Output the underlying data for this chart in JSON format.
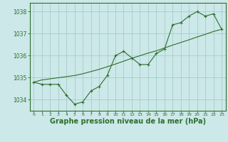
{
  "x": [
    0,
    1,
    2,
    3,
    4,
    5,
    6,
    7,
    8,
    9,
    10,
    11,
    12,
    13,
    14,
    15,
    16,
    17,
    18,
    19,
    20,
    21,
    22,
    23
  ],
  "line1": [
    1034.8,
    1034.7,
    1034.7,
    1034.7,
    1034.2,
    1033.8,
    1033.9,
    1034.4,
    1034.6,
    1035.1,
    1036.0,
    1036.2,
    1035.9,
    1035.6,
    1035.6,
    1036.1,
    1036.3,
    1037.4,
    1037.5,
    1037.8,
    1038.0,
    1037.8,
    1037.9,
    1037.2
  ],
  "smooth_line": [
    1034.8,
    1034.9,
    1034.95,
    1035.0,
    1035.05,
    1035.1,
    1035.18,
    1035.28,
    1035.38,
    1035.5,
    1035.62,
    1035.75,
    1035.88,
    1036.0,
    1036.12,
    1036.22,
    1036.35,
    1036.48,
    1036.6,
    1036.72,
    1036.85,
    1036.97,
    1037.1,
    1037.2
  ],
  "line_color": "#2d6e2d",
  "background_color": "#cce8e8",
  "grid_color": "#a0c8c8",
  "xlabel": "Graphe pression niveau de la mer (hPa)",
  "xlabel_fontsize": 7,
  "yticks": [
    1034,
    1035,
    1036,
    1037,
    1038
  ],
  "xticks": [
    0,
    1,
    2,
    3,
    4,
    5,
    6,
    7,
    8,
    9,
    10,
    11,
    12,
    13,
    14,
    15,
    16,
    17,
    18,
    19,
    20,
    21,
    22,
    23
  ],
  "ylim": [
    1033.5,
    1038.4
  ],
  "xlim": [
    -0.5,
    23.5
  ]
}
